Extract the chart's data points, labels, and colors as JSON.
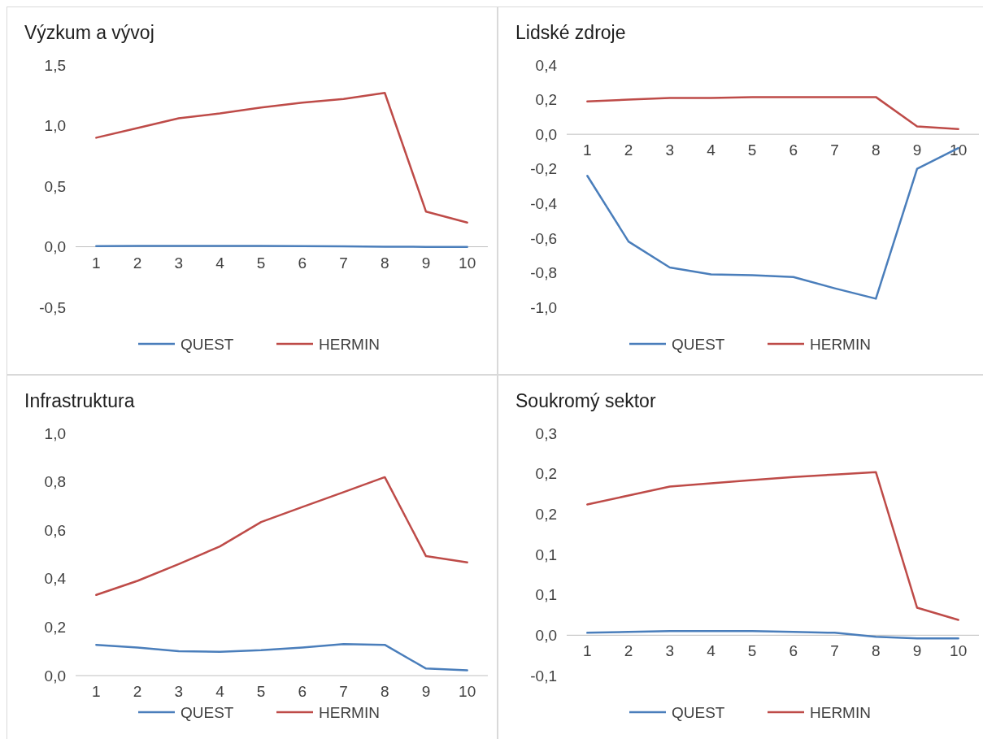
{
  "chart_data": [
    {
      "type": "line",
      "title": "Výzkum a vývoj",
      "categories": [
        "1",
        "2",
        "3",
        "4",
        "5",
        "6",
        "7",
        "8",
        "9",
        "10"
      ],
      "ylim": [
        -0.5,
        1.5
      ],
      "yticks": [
        {
          "value": -0.5,
          "label": "-0,5"
        },
        {
          "value": 0,
          "label": "0,0"
        },
        {
          "value": 0.5,
          "label": "0,5"
        },
        {
          "value": 1,
          "label": "1,0"
        },
        {
          "value": 1.5,
          "label": "1,5"
        }
      ],
      "grid": false,
      "legend": "bottom",
      "series": [
        {
          "name": "QUEST",
          "color": "#4a7ebb",
          "values": [
            0.005,
            0.006,
            0.006,
            0.006,
            0.006,
            0.005,
            0.003,
            0.0,
            -0.001,
            -0.001
          ]
        },
        {
          "name": "HERMIN",
          "color": "#be4b48",
          "values": [
            0.9,
            0.98,
            1.06,
            1.1,
            1.15,
            1.19,
            1.22,
            1.27,
            0.29,
            0.2
          ]
        }
      ]
    },
    {
      "type": "line",
      "title": "Lidské zdroje",
      "categories": [
        "1",
        "2",
        "3",
        "4",
        "5",
        "6",
        "7",
        "8",
        "9",
        "10"
      ],
      "ylim": [
        -1.0,
        0.4
      ],
      "yticks": [
        {
          "value": -1,
          "label": "-1,0"
        },
        {
          "value": -0.8,
          "label": "-0,8"
        },
        {
          "value": -0.6,
          "label": "-0,6"
        },
        {
          "value": -0.4,
          "label": "-0,4"
        },
        {
          "value": -0.2,
          "label": "-0,2"
        },
        {
          "value": 0,
          "label": "0,0"
        },
        {
          "value": 0.2,
          "label": "0,2"
        },
        {
          "value": 0.4,
          "label": "0,4"
        }
      ],
      "grid": false,
      "legend": "bottom",
      "series": [
        {
          "name": "QUEST",
          "color": "#4a7ebb",
          "values": [
            -0.24,
            -0.62,
            -0.77,
            -0.81,
            -0.815,
            -0.825,
            -0.89,
            -0.95,
            -0.2,
            -0.08
          ]
        },
        {
          "name": "HERMIN",
          "color": "#be4b48",
          "values": [
            0.19,
            0.2,
            0.21,
            0.21,
            0.215,
            0.215,
            0.215,
            0.215,
            0.045,
            0.03
          ]
        }
      ]
    },
    {
      "type": "line",
      "title": "Infrastruktura",
      "categories": [
        "1",
        "2",
        "3",
        "4",
        "5",
        "6",
        "7",
        "8",
        "9",
        "10"
      ],
      "ylim": [
        0,
        1
      ],
      "yticks": [
        {
          "value": 0,
          "label": "0,0"
        },
        {
          "value": 0.2,
          "label": "0,2"
        },
        {
          "value": 0.4,
          "label": "0,4"
        },
        {
          "value": 0.6,
          "label": "0,6"
        },
        {
          "value": 0.8,
          "label": "0,8"
        },
        {
          "value": 1,
          "label": "1,0"
        }
      ],
      "grid": false,
      "legend": "bottom",
      "series": [
        {
          "name": "QUEST",
          "color": "#4a7ebb",
          "values": [
            0.127,
            0.116,
            0.101,
            0.098,
            0.105,
            0.116,
            0.13,
            0.127,
            0.029,
            0.022
          ]
        },
        {
          "name": "HERMIN",
          "color": "#be4b48",
          "values": [
            0.333,
            0.391,
            0.46,
            0.533,
            0.634,
            0.696,
            0.757,
            0.819,
            0.493,
            0.467
          ]
        }
      ]
    },
    {
      "type": "line",
      "title": "Soukromý sektor",
      "categories": [
        "1",
        "2",
        "3",
        "4",
        "5",
        "6",
        "7",
        "8",
        "9",
        "10"
      ],
      "ylim": [
        -0.05,
        0.25
      ],
      "yticks": [
        {
          "value": -0.05,
          "label": "-0,1"
        },
        {
          "value": 0,
          "label": "0,0"
        },
        {
          "value": 0.05,
          "label": "0,1"
        },
        {
          "value": 0.1,
          "label": "0,1"
        },
        {
          "value": 0.15,
          "label": "0,2"
        },
        {
          "value": 0.2,
          "label": "0,2"
        },
        {
          "value": 0.25,
          "label": "0,3"
        }
      ],
      "grid": false,
      "legend": "bottom",
      "series": [
        {
          "name": "QUEST",
          "color": "#4a7ebb",
          "values": [
            0.003,
            0.004,
            0.005,
            0.005,
            0.005,
            0.004,
            0.003,
            -0.002,
            -0.004,
            -0.004
          ]
        },
        {
          "name": "HERMIN",
          "color": "#be4b48",
          "values": [
            0.162,
            0.173,
            0.184,
            0.188,
            0.192,
            0.196,
            0.199,
            0.202,
            0.034,
            0.019
          ]
        }
      ]
    }
  ]
}
